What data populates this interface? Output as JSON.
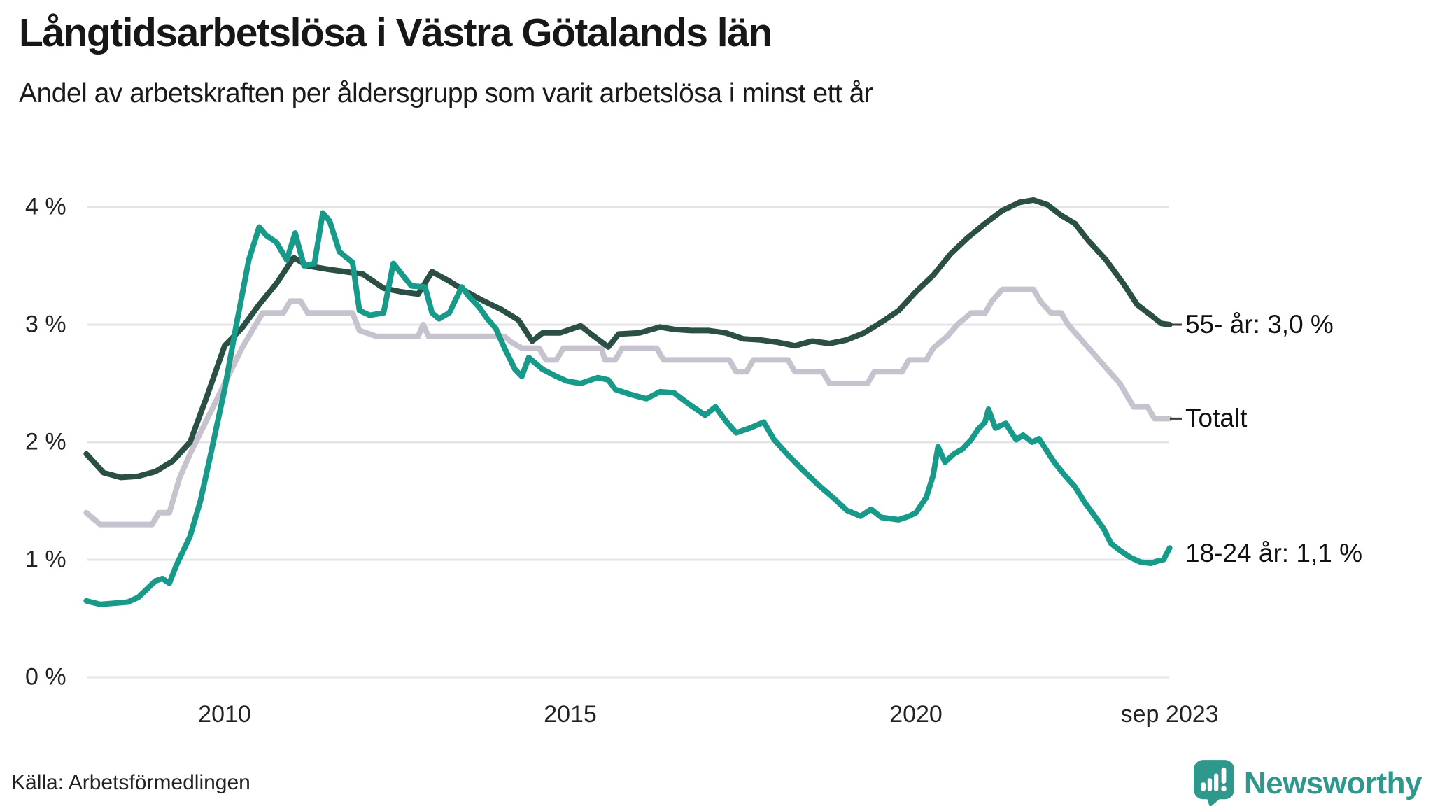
{
  "header": {
    "title": "Långtidsarbetslösa i Västra Götalands län",
    "subtitle": "Andel av arbetskraften per åldersgrupp som varit arbetslösa i minst ett år"
  },
  "chart_data": {
    "type": "line",
    "title": "Långtidsarbetslösa i Västra Götalands län",
    "subtitle": "Andel av arbetskraften per åldersgrupp som varit arbetslösa i minst ett år",
    "xlabel": "",
    "ylabel": "",
    "unit": "%",
    "grid": "horizontal",
    "legend_position": "right-end-labels",
    "ylim": [
      0,
      4.3
    ],
    "xlim_years": [
      2008.0,
      2023.75
    ],
    "y_ticks": [
      {
        "value": 0,
        "label": "0 %"
      },
      {
        "value": 1,
        "label": "1 %"
      },
      {
        "value": 2,
        "label": "2 %"
      },
      {
        "value": 3,
        "label": "3 %"
      },
      {
        "value": 4,
        "label": "4 %"
      }
    ],
    "x_ticks": [
      {
        "year": 2010,
        "label": "2010"
      },
      {
        "year": 2015,
        "label": "2015"
      },
      {
        "year": 2020,
        "label": "2020"
      },
      {
        "year": 2023.67,
        "label": "sep 2023"
      }
    ],
    "series": [
      {
        "name": "Totalt",
        "end_label": "Totalt",
        "end_value": 2.2,
        "color": "#c6c3cf",
        "has_tick_dash": true,
        "points": [
          [
            2008.0,
            1.4
          ],
          [
            2008.2,
            1.3
          ],
          [
            2008.95,
            1.3
          ],
          [
            2009.05,
            1.4
          ],
          [
            2009.2,
            1.4
          ],
          [
            2009.35,
            1.7
          ],
          [
            2009.5,
            1.9
          ],
          [
            2009.75,
            2.2
          ],
          [
            2010.0,
            2.5
          ],
          [
            2010.25,
            2.8
          ],
          [
            2010.45,
            3.0
          ],
          [
            2010.55,
            3.1
          ],
          [
            2010.85,
            3.1
          ],
          [
            2010.95,
            3.2
          ],
          [
            2011.1,
            3.2
          ],
          [
            2011.2,
            3.1
          ],
          [
            2011.85,
            3.1
          ],
          [
            2011.95,
            2.95
          ],
          [
            2012.2,
            2.9
          ],
          [
            2012.8,
            2.9
          ],
          [
            2012.87,
            3.0
          ],
          [
            2012.95,
            2.9
          ],
          [
            2014.05,
            2.9
          ],
          [
            2014.15,
            2.85
          ],
          [
            2014.3,
            2.8
          ],
          [
            2014.55,
            2.8
          ],
          [
            2014.65,
            2.7
          ],
          [
            2014.8,
            2.7
          ],
          [
            2014.9,
            2.8
          ],
          [
            2015.45,
            2.8
          ],
          [
            2015.5,
            2.7
          ],
          [
            2015.65,
            2.7
          ],
          [
            2015.75,
            2.8
          ],
          [
            2016.25,
            2.8
          ],
          [
            2016.35,
            2.7
          ],
          [
            2017.3,
            2.7
          ],
          [
            2017.4,
            2.6
          ],
          [
            2017.55,
            2.6
          ],
          [
            2017.65,
            2.7
          ],
          [
            2018.15,
            2.7
          ],
          [
            2018.25,
            2.6
          ],
          [
            2018.65,
            2.6
          ],
          [
            2018.75,
            2.5
          ],
          [
            2019.3,
            2.5
          ],
          [
            2019.4,
            2.6
          ],
          [
            2019.8,
            2.6
          ],
          [
            2019.9,
            2.7
          ],
          [
            2020.15,
            2.7
          ],
          [
            2020.25,
            2.8
          ],
          [
            2020.45,
            2.9
          ],
          [
            2020.6,
            3.0
          ],
          [
            2020.8,
            3.1
          ],
          [
            2021.0,
            3.1
          ],
          [
            2021.1,
            3.2
          ],
          [
            2021.25,
            3.3
          ],
          [
            2021.7,
            3.3
          ],
          [
            2021.8,
            3.2
          ],
          [
            2021.95,
            3.1
          ],
          [
            2022.1,
            3.1
          ],
          [
            2022.2,
            3.0
          ],
          [
            2022.35,
            2.9
          ],
          [
            2022.5,
            2.8
          ],
          [
            2022.65,
            2.7
          ],
          [
            2022.8,
            2.6
          ],
          [
            2022.95,
            2.5
          ],
          [
            2023.05,
            2.4
          ],
          [
            2023.15,
            2.3
          ],
          [
            2023.35,
            2.3
          ],
          [
            2023.45,
            2.2
          ],
          [
            2023.67,
            2.2
          ]
        ]
      },
      {
        "name": "55- år",
        "end_label": "55- år: 3,0 %",
        "end_value": 3.0,
        "color": "#2b4f44",
        "has_tick_dash": true,
        "points": [
          [
            2008.0,
            1.9
          ],
          [
            2008.25,
            1.74
          ],
          [
            2008.5,
            1.7
          ],
          [
            2008.75,
            1.71
          ],
          [
            2009.0,
            1.75
          ],
          [
            2009.25,
            1.84
          ],
          [
            2009.5,
            2.0
          ],
          [
            2009.75,
            2.4
          ],
          [
            2010.0,
            2.82
          ],
          [
            2010.25,
            2.97
          ],
          [
            2010.5,
            3.17
          ],
          [
            2010.75,
            3.35
          ],
          [
            2011.0,
            3.57
          ],
          [
            2011.2,
            3.5
          ],
          [
            2011.5,
            3.47
          ],
          [
            2011.75,
            3.45
          ],
          [
            2012.0,
            3.43
          ],
          [
            2012.3,
            3.31
          ],
          [
            2012.55,
            3.28
          ],
          [
            2012.8,
            3.26
          ],
          [
            2013.0,
            3.45
          ],
          [
            2013.25,
            3.37
          ],
          [
            2013.5,
            3.28
          ],
          [
            2013.75,
            3.2
          ],
          [
            2014.0,
            3.13
          ],
          [
            2014.25,
            3.04
          ],
          [
            2014.45,
            2.86
          ],
          [
            2014.6,
            2.93
          ],
          [
            2014.85,
            2.93
          ],
          [
            2015.15,
            2.99
          ],
          [
            2015.3,
            2.92
          ],
          [
            2015.55,
            2.81
          ],
          [
            2015.7,
            2.92
          ],
          [
            2016.0,
            2.93
          ],
          [
            2016.3,
            2.98
          ],
          [
            2016.5,
            2.96
          ],
          [
            2016.75,
            2.95
          ],
          [
            2017.0,
            2.95
          ],
          [
            2017.25,
            2.93
          ],
          [
            2017.5,
            2.88
          ],
          [
            2017.75,
            2.87
          ],
          [
            2018.0,
            2.85
          ],
          [
            2018.25,
            2.82
          ],
          [
            2018.5,
            2.86
          ],
          [
            2018.75,
            2.84
          ],
          [
            2019.0,
            2.87
          ],
          [
            2019.25,
            2.93
          ],
          [
            2019.5,
            3.02
          ],
          [
            2019.75,
            3.12
          ],
          [
            2020.0,
            3.28
          ],
          [
            2020.25,
            3.42
          ],
          [
            2020.5,
            3.6
          ],
          [
            2020.75,
            3.74
          ],
          [
            2021.0,
            3.86
          ],
          [
            2021.25,
            3.97
          ],
          [
            2021.5,
            4.04
          ],
          [
            2021.7,
            4.06
          ],
          [
            2021.9,
            4.02
          ],
          [
            2022.1,
            3.93
          ],
          [
            2022.3,
            3.86
          ],
          [
            2022.5,
            3.71
          ],
          [
            2022.75,
            3.55
          ],
          [
            2023.0,
            3.35
          ],
          [
            2023.2,
            3.17
          ],
          [
            2023.4,
            3.08
          ],
          [
            2023.55,
            3.01
          ],
          [
            2023.67,
            3.0
          ]
        ]
      },
      {
        "name": "18-24 år",
        "end_label": "18-24 år: 1,1 %",
        "end_value": 1.1,
        "color": "#189a8a",
        "has_tick_dash": false,
        "points": [
          [
            2008.0,
            0.65
          ],
          [
            2008.2,
            0.62
          ],
          [
            2008.4,
            0.63
          ],
          [
            2008.6,
            0.64
          ],
          [
            2008.75,
            0.68
          ],
          [
            2009.0,
            0.82
          ],
          [
            2009.1,
            0.84
          ],
          [
            2009.2,
            0.8
          ],
          [
            2009.3,
            0.95
          ],
          [
            2009.5,
            1.2
          ],
          [
            2009.65,
            1.5
          ],
          [
            2009.8,
            1.9
          ],
          [
            2010.0,
            2.45
          ],
          [
            2010.17,
            3.0
          ],
          [
            2010.35,
            3.55
          ],
          [
            2010.5,
            3.83
          ],
          [
            2010.6,
            3.76
          ],
          [
            2010.75,
            3.7
          ],
          [
            2010.9,
            3.55
          ],
          [
            2011.02,
            3.78
          ],
          [
            2011.15,
            3.5
          ],
          [
            2011.3,
            3.52
          ],
          [
            2011.42,
            3.95
          ],
          [
            2011.52,
            3.88
          ],
          [
            2011.66,
            3.62
          ],
          [
            2011.85,
            3.53
          ],
          [
            2011.95,
            3.12
          ],
          [
            2012.1,
            3.08
          ],
          [
            2012.3,
            3.1
          ],
          [
            2012.44,
            3.52
          ],
          [
            2012.55,
            3.44
          ],
          [
            2012.7,
            3.33
          ],
          [
            2012.9,
            3.32
          ],
          [
            2013.0,
            3.1
          ],
          [
            2013.1,
            3.05
          ],
          [
            2013.25,
            3.1
          ],
          [
            2013.43,
            3.32
          ],
          [
            2013.55,
            3.23
          ],
          [
            2013.68,
            3.15
          ],
          [
            2013.8,
            3.05
          ],
          [
            2013.92,
            2.97
          ],
          [
            2014.05,
            2.8
          ],
          [
            2014.2,
            2.62
          ],
          [
            2014.3,
            2.56
          ],
          [
            2014.4,
            2.72
          ],
          [
            2014.6,
            2.62
          ],
          [
            2014.8,
            2.56
          ],
          [
            2014.95,
            2.52
          ],
          [
            2015.15,
            2.5
          ],
          [
            2015.4,
            2.55
          ],
          [
            2015.55,
            2.53
          ],
          [
            2015.65,
            2.45
          ],
          [
            2015.85,
            2.41
          ],
          [
            2016.1,
            2.37
          ],
          [
            2016.3,
            2.43
          ],
          [
            2016.5,
            2.42
          ],
          [
            2016.75,
            2.31
          ],
          [
            2016.95,
            2.23
          ],
          [
            2017.1,
            2.3
          ],
          [
            2017.25,
            2.18
          ],
          [
            2017.4,
            2.08
          ],
          [
            2017.6,
            2.12
          ],
          [
            2017.8,
            2.17
          ],
          [
            2017.95,
            2.02
          ],
          [
            2018.15,
            1.89
          ],
          [
            2018.35,
            1.77
          ],
          [
            2018.6,
            1.63
          ],
          [
            2018.8,
            1.53
          ],
          [
            2019.0,
            1.42
          ],
          [
            2019.2,
            1.37
          ],
          [
            2019.35,
            1.43
          ],
          [
            2019.5,
            1.36
          ],
          [
            2019.75,
            1.34
          ],
          [
            2019.9,
            1.37
          ],
          [
            2020.0,
            1.4
          ],
          [
            2020.15,
            1.53
          ],
          [
            2020.25,
            1.72
          ],
          [
            2020.32,
            1.96
          ],
          [
            2020.42,
            1.83
          ],
          [
            2020.55,
            1.9
          ],
          [
            2020.67,
            1.94
          ],
          [
            2020.8,
            2.02
          ],
          [
            2020.9,
            2.11
          ],
          [
            2021.0,
            2.17
          ],
          [
            2021.05,
            2.28
          ],
          [
            2021.15,
            2.12
          ],
          [
            2021.3,
            2.16
          ],
          [
            2021.45,
            2.02
          ],
          [
            2021.55,
            2.06
          ],
          [
            2021.68,
            2.0
          ],
          [
            2021.78,
            2.03
          ],
          [
            2021.9,
            1.92
          ],
          [
            2022.0,
            1.83
          ],
          [
            2022.15,
            1.72
          ],
          [
            2022.3,
            1.62
          ],
          [
            2022.45,
            1.48
          ],
          [
            2022.6,
            1.36
          ],
          [
            2022.72,
            1.26
          ],
          [
            2022.82,
            1.14
          ],
          [
            2022.95,
            1.08
          ],
          [
            2023.1,
            1.02
          ],
          [
            2023.25,
            0.98
          ],
          [
            2023.4,
            0.97
          ],
          [
            2023.5,
            0.99
          ],
          [
            2023.58,
            1.0
          ],
          [
            2023.67,
            1.1
          ]
        ]
      }
    ]
  },
  "footer": {
    "source": "Källa: Arbetsförmedlingen",
    "brand": "Newsworthy"
  },
  "colors": {
    "grid": "#e4e4e8",
    "tick_dash": "#3a3a3a",
    "title_text": "#171717",
    "axis_text": "#222222",
    "brand_teal": "#2e988c"
  }
}
